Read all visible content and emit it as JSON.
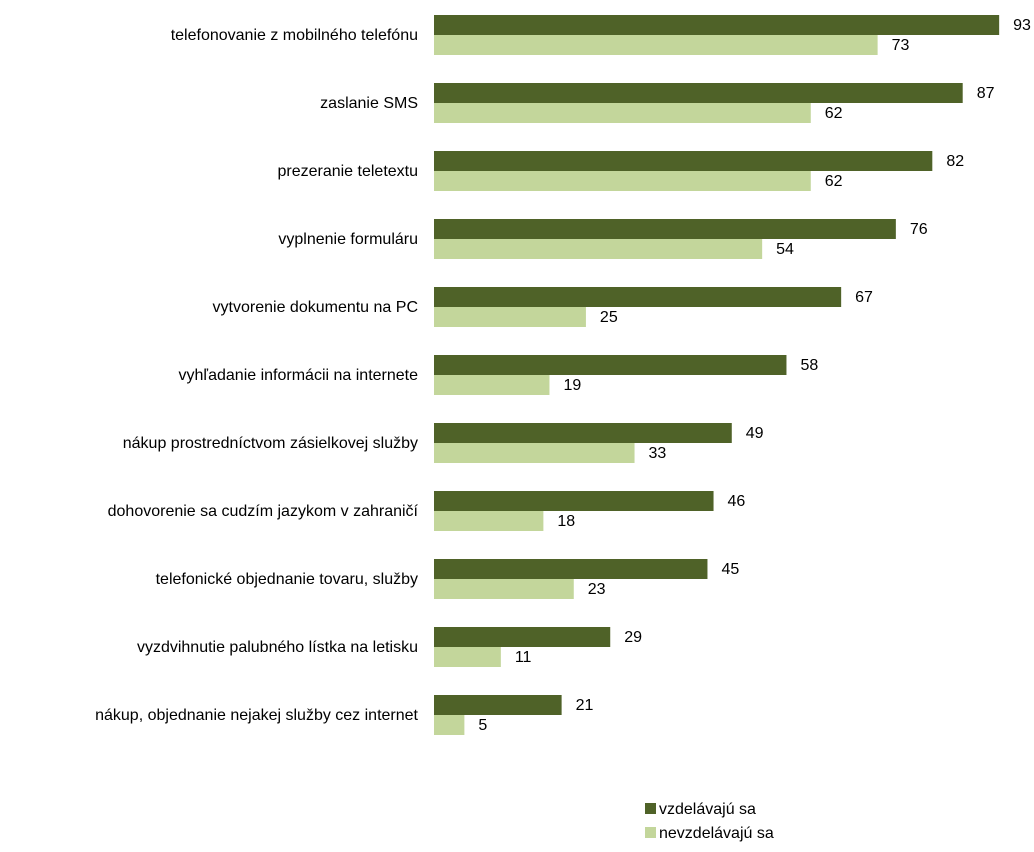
{
  "chart_data": {
    "type": "bar",
    "orientation": "horizontal",
    "categories": [
      "telefonovanie z mobilného telefónu",
      "zaslanie SMS",
      "prezeranie teletextu",
      "vyplnenie formuláru",
      "vytvorenie dokumentu na PC",
      "vyhľadanie informácii na internete",
      "nákup prostredníctvom zásielkovej služby",
      "dohovorenie sa cudzím jazykom v zahraničí",
      "telefonické objednanie tovaru, služby",
      "vyzdvihnutie palubného lístka na letisku",
      "nákup, objednanie nejakej služby cez internet"
    ],
    "series": [
      {
        "name": "vzdelávajú sa",
        "color": "#4f6228",
        "values": [
          93,
          87,
          82,
          76,
          67,
          58,
          49,
          46,
          45,
          29,
          21
        ]
      },
      {
        "name": "nevzdelávajú sa",
        "color": "#c3d69b",
        "values": [
          73,
          62,
          62,
          54,
          25,
          19,
          33,
          18,
          23,
          11,
          5
        ]
      }
    ],
    "data_labels": true,
    "grid": false,
    "axis_visible": false,
    "xlim": [
      0,
      100
    ],
    "legend_position": "bottom-right"
  }
}
